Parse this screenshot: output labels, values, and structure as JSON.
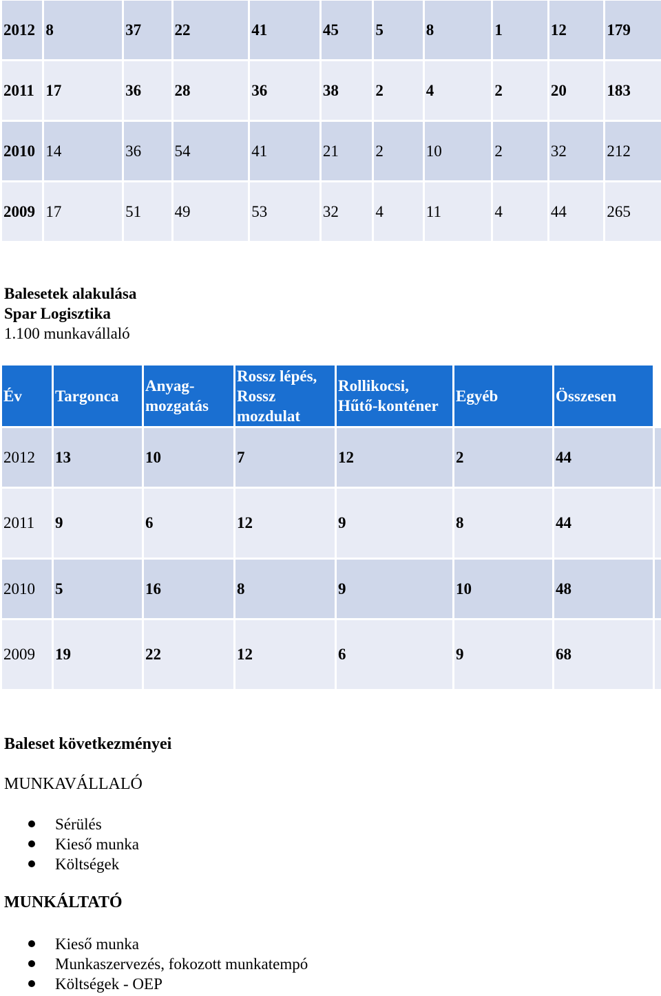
{
  "top_table": {
    "rows": [
      {
        "year": "2012",
        "cells": [
          "8",
          "37",
          "22",
          "41",
          "45",
          "5",
          "8",
          "1",
          "12",
          "179"
        ],
        "bold": true
      },
      {
        "year": "2011",
        "cells": [
          "17",
          "36",
          "28",
          "36",
          "38",
          "2",
          "4",
          "2",
          "20",
          "183"
        ],
        "bold": true
      },
      {
        "year": "2010",
        "cells": [
          "14",
          "36",
          "54",
          "41",
          "21",
          "2",
          "10",
          "2",
          "32",
          "212"
        ],
        "bold": false
      },
      {
        "year": "2009",
        "cells": [
          "17",
          "51",
          "49",
          "53",
          "32",
          "4",
          "11",
          "4",
          "44",
          "265"
        ],
        "bold": false
      }
    ]
  },
  "title": {
    "line1": "Balesetek alakulása",
    "line2": "Spar Logisztika",
    "line3": "1.100 munkavállaló"
  },
  "accidents_table": {
    "headers": [
      "Év",
      "Targonca",
      "Anyag-\nmozgatás",
      "Rossz lépés,\nRossz\nmozdulat",
      "Rollikocsi,\nHűtő-konténer",
      "Egyéb",
      "Összesen"
    ],
    "rows": [
      {
        "year": "2012",
        "cells": [
          "13",
          "10",
          "7",
          "12",
          "2",
          "44"
        ]
      },
      {
        "year": "2011",
        "cells": [
          "9",
          "6",
          "12",
          "9",
          "8",
          "44"
        ]
      },
      {
        "year": "2010",
        "cells": [
          "5",
          "16",
          "8",
          "9",
          "10",
          "48"
        ]
      },
      {
        "year": "2009",
        "cells": [
          "19",
          "22",
          "12",
          "6",
          "9",
          "68"
        ]
      }
    ]
  },
  "consequences": {
    "title": "Baleset következményei",
    "employee": {
      "heading": "MUNKAVÁLLALÓ",
      "items": [
        "Sérülés",
        "Kieső munka",
        "Költségek"
      ]
    },
    "employer": {
      "heading": "MUNKÁLTATÓ",
      "items": [
        "Kieső munka",
        "Munkaszervezés, fokozott munkatempó",
        "Költségek - OEP"
      ]
    }
  },
  "colors": {
    "header_blue": "#1a6fd1",
    "row_dark": "#cfd7ea",
    "row_light": "#e8ebf5"
  }
}
